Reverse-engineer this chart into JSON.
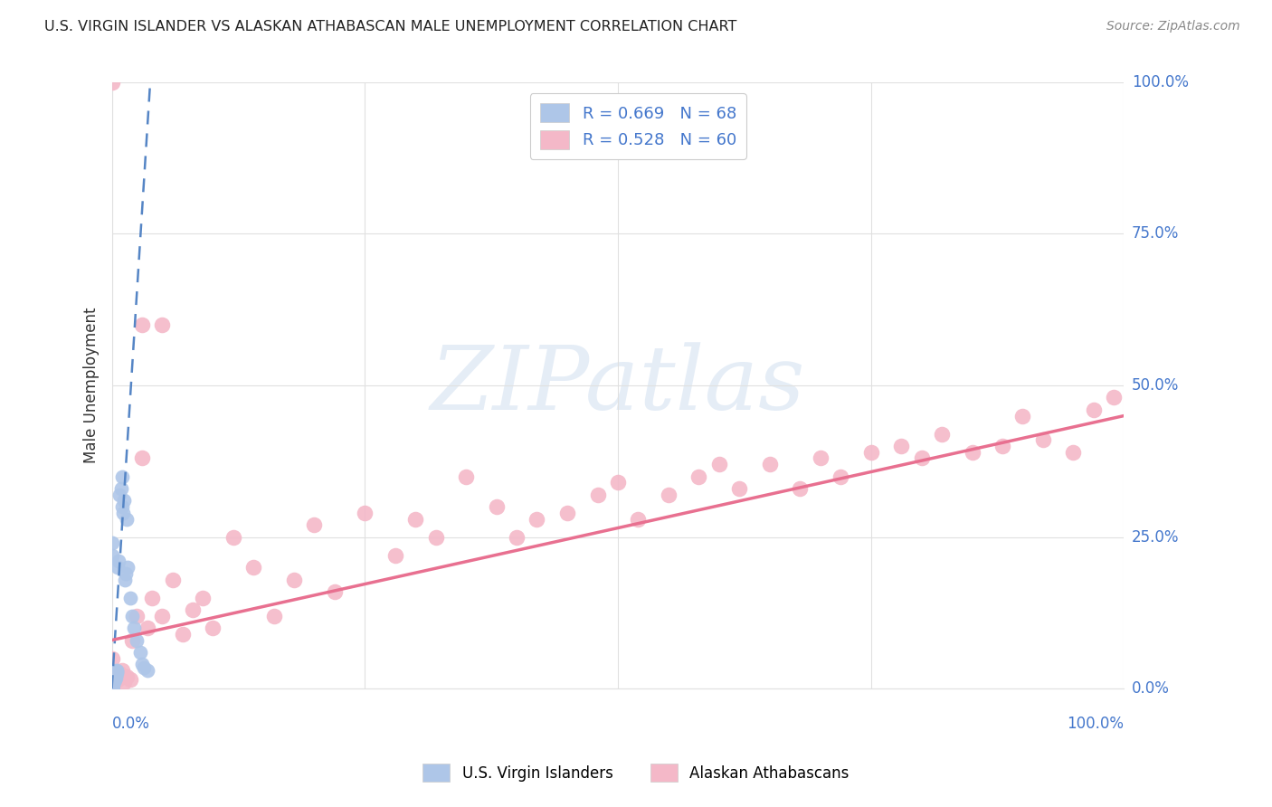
{
  "title": "U.S. VIRGIN ISLANDER VS ALASKAN ATHABASCAN MALE UNEMPLOYMENT CORRELATION CHART",
  "source": "Source: ZipAtlas.com",
  "ylabel": "Male Unemployment",
  "blue_color": "#aec6e8",
  "blue_edge_color": "#aec6e8",
  "blue_line_color": "#5585c5",
  "pink_color": "#f4b8c8",
  "pink_edge_color": "#f4b8c8",
  "pink_line_color": "#e87090",
  "axis_label_color": "#4477cc",
  "background_color": "#ffffff",
  "grid_color": "#e0e0e0",
  "legend_r1": "R = 0.669   N = 68",
  "legend_r2": "R = 0.528   N = 60",
  "watermark": "ZIPatlas",
  "label_vi": "U.S. Virgin Islanders",
  "label_aa": "Alaskan Athabascans",
  "vi_x": [
    0.0,
    0.0,
    0.0,
    0.0,
    0.0,
    0.0,
    0.0,
    0.0,
    0.0,
    0.0,
    0.0,
    0.0,
    0.0,
    0.0,
    0.0,
    0.0,
    0.0,
    0.0,
    0.0,
    0.0,
    0.0,
    0.0,
    0.0,
    0.0,
    0.0,
    0.0,
    0.0,
    0.0,
    0.0,
    0.0,
    0.001,
    0.001,
    0.001,
    0.001,
    0.001,
    0.002,
    0.002,
    0.002,
    0.002,
    0.003,
    0.003,
    0.004,
    0.004,
    0.005,
    0.005,
    0.005,
    0.006,
    0.007,
    0.008,
    0.009,
    0.01,
    0.01,
    0.011,
    0.012,
    0.013,
    0.014,
    0.015,
    0.016,
    0.018,
    0.02,
    0.022,
    0.025,
    0.028,
    0.03,
    0.032,
    0.035,
    0.0,
    0.0
  ],
  "vi_y": [
    0.0,
    0.0,
    0.0,
    0.0,
    0.0,
    0.0,
    0.0,
    0.0,
    0.0,
    0.0,
    0.0,
    0.0,
    0.0,
    0.0,
    0.0,
    0.005,
    0.005,
    0.008,
    0.01,
    0.01,
    0.012,
    0.015,
    0.015,
    0.018,
    0.02,
    0.02,
    0.022,
    0.025,
    0.025,
    0.03,
    0.01,
    0.012,
    0.015,
    0.018,
    0.02,
    0.01,
    0.015,
    0.018,
    0.02,
    0.015,
    0.02,
    0.018,
    0.022,
    0.025,
    0.028,
    0.03,
    0.2,
    0.21,
    0.32,
    0.33,
    0.3,
    0.35,
    0.29,
    0.31,
    0.18,
    0.19,
    0.28,
    0.2,
    0.15,
    0.12,
    0.1,
    0.08,
    0.06,
    0.04,
    0.035,
    0.03,
    0.22,
    0.24
  ],
  "aa_x": [
    0.0,
    0.002,
    0.004,
    0.006,
    0.008,
    0.01,
    0.012,
    0.015,
    0.018,
    0.02,
    0.025,
    0.03,
    0.035,
    0.04,
    0.05,
    0.06,
    0.07,
    0.08,
    0.09,
    0.1,
    0.12,
    0.14,
    0.16,
    0.18,
    0.2,
    0.22,
    0.25,
    0.28,
    0.3,
    0.32,
    0.35,
    0.38,
    0.4,
    0.42,
    0.45,
    0.48,
    0.5,
    0.52,
    0.55,
    0.58,
    0.6,
    0.62,
    0.65,
    0.68,
    0.7,
    0.72,
    0.75,
    0.78,
    0.8,
    0.82,
    0.85,
    0.88,
    0.9,
    0.92,
    0.95,
    0.97,
    0.99,
    0.03,
    0.05,
    0.0
  ],
  "aa_y": [
    0.05,
    0.01,
    0.02,
    0.015,
    0.025,
    0.03,
    0.01,
    0.02,
    0.015,
    0.08,
    0.12,
    0.38,
    0.1,
    0.15,
    0.12,
    0.18,
    0.09,
    0.13,
    0.15,
    0.1,
    0.25,
    0.2,
    0.12,
    0.18,
    0.27,
    0.16,
    0.29,
    0.22,
    0.28,
    0.25,
    0.35,
    0.3,
    0.25,
    0.28,
    0.29,
    0.32,
    0.34,
    0.28,
    0.32,
    0.35,
    0.37,
    0.33,
    0.37,
    0.33,
    0.38,
    0.35,
    0.39,
    0.4,
    0.38,
    0.42,
    0.39,
    0.4,
    0.45,
    0.41,
    0.39,
    0.46,
    0.48,
    0.6,
    0.6,
    1.0
  ],
  "vi_line_x": [
    0.0,
    0.038
  ],
  "vi_line_y": [
    0.0,
    1.0
  ],
  "aa_line_x": [
    0.0,
    1.0
  ],
  "aa_line_y": [
    0.08,
    0.45
  ],
  "xlim": [
    0.0,
    1.0
  ],
  "ylim": [
    0.0,
    1.0
  ],
  "xticks": [
    0.0,
    0.25,
    0.5,
    0.75,
    1.0
  ],
  "yticks": [
    0.0,
    0.25,
    0.5,
    0.75,
    1.0
  ],
  "xtick_labels": [
    "0.0%",
    "",
    "",
    "",
    "100.0%"
  ],
  "ytick_labels": [
    "0.0%",
    "25.0%",
    "50.0%",
    "75.0%",
    "100.0%"
  ]
}
